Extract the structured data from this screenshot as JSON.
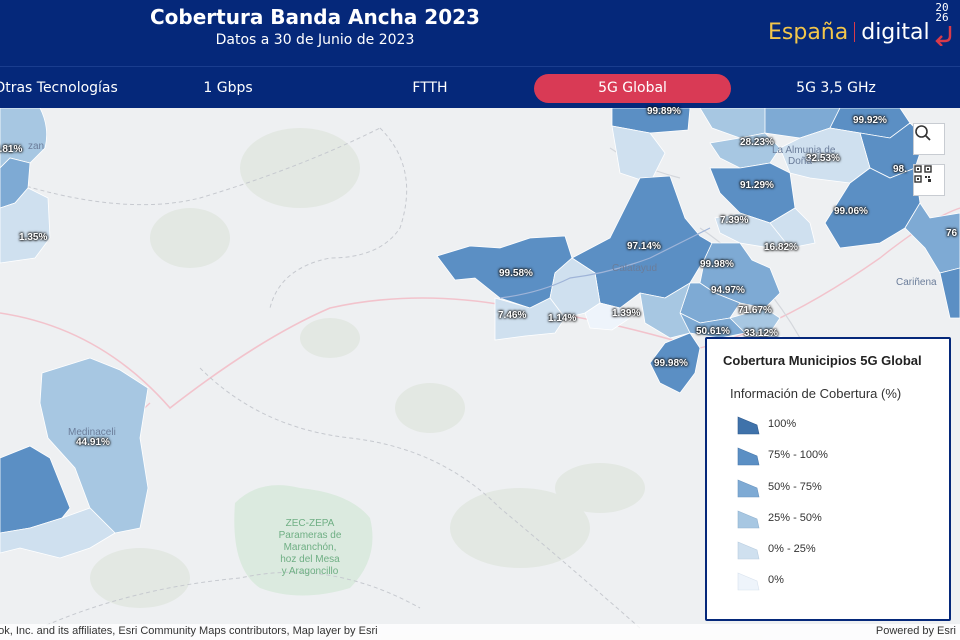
{
  "header": {
    "title": "Cobertura Banda Ancha 2023",
    "subtitle": "Datos a 30 de Junio de 2023",
    "logo": {
      "part1": "España",
      "part2": "digital",
      "year_top": "20",
      "year_bottom": "26"
    }
  },
  "nav": {
    "tabs": [
      {
        "label": "Otras Tecnologías",
        "active": false
      },
      {
        "label": "1 Gbps",
        "active": false
      },
      {
        "label": "FTTH",
        "active": false
      },
      {
        "label": "5G Global",
        "active": true
      },
      {
        "label": "5G 3,5 GHz",
        "active": false
      }
    ]
  },
  "map": {
    "coverage_labels": [
      "99.89%",
      "99.92%",
      "28.23%",
      "32.53%",
      "91.29%",
      "98.",
      "99.06%",
      "7.39%",
      "16.82%",
      "97.14%",
      "99.58%",
      "99.98%",
      "94.97%",
      "71.67%",
      "7.46%",
      "1.14%",
      "1.39%",
      "50.61%",
      "33.12%",
      "99.98%",
      "3.81%",
      "1.35%",
      "44.91%",
      "76"
    ],
    "places": [
      "Calatayud",
      "La Almunia de",
      "Doña",
      "Cariñena",
      "Medinaceli",
      "zan"
    ],
    "protected_area": [
      "ZEC-ZEPA",
      "Parameras de",
      "Maranchón,",
      "hoz del Mesa",
      "y Aragoncillo"
    ],
    "search_icon": "search-icon",
    "qr_icon": "qr-code-icon"
  },
  "legend": {
    "title": "Cobertura Municipios 5G Global",
    "subtitle": "Información de Cobertura (%)",
    "items": [
      {
        "label": "100%",
        "color": "#3f72aa"
      },
      {
        "label": "75% - 100%",
        "color": "#5b8fc4"
      },
      {
        "label": "50% - 75%",
        "color": "#7eaad4"
      },
      {
        "label": "25% - 50%",
        "color": "#a7c7e2"
      },
      {
        "label": "0% - 25%",
        "color": "#cfe0ef"
      },
      {
        "label": "0%",
        "color": "#eef4fb"
      }
    ]
  },
  "attribution": {
    "left": "ook, Inc. and its affiliates, Esri Community Maps contributors, Map layer by Esri",
    "right": "Powered by Esri"
  },
  "colors": {
    "header_bg": "#05287a",
    "active_tab": "#d93a55",
    "logo_yellow": "#f3c64a"
  }
}
